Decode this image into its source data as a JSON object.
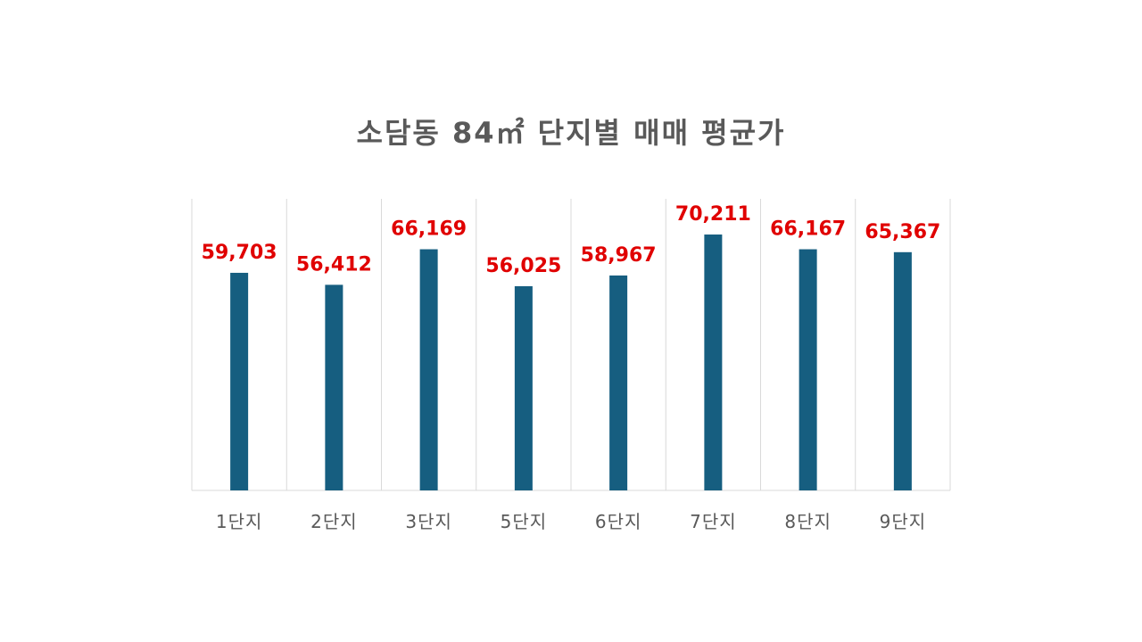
{
  "chart_data": {
    "type": "bar",
    "title": "소담동 84㎡ 단지별 매매 평균가",
    "xlabel": "",
    "ylabel": "",
    "categories": [
      "1단지",
      "2단지",
      "3단지",
      "5단지",
      "6단지",
      "7단지",
      "8단지",
      "9단지"
    ],
    "values": [
      59703,
      56412,
      66169,
      56025,
      58967,
      70211,
      66167,
      65367
    ],
    "data_labels": [
      "59,703",
      "56,412",
      "66,169",
      "56,025",
      "58,967",
      "70,211",
      "66,167",
      "65,367"
    ],
    "ylim": [
      0,
      80000
    ],
    "grid": {
      "vertical_category_separators": true,
      "horizontal": false
    },
    "legend": "none",
    "colors": {
      "bar": "#165E80",
      "data_label": "#E00000",
      "text": "#595959",
      "grid": "#D9D9D9"
    }
  }
}
